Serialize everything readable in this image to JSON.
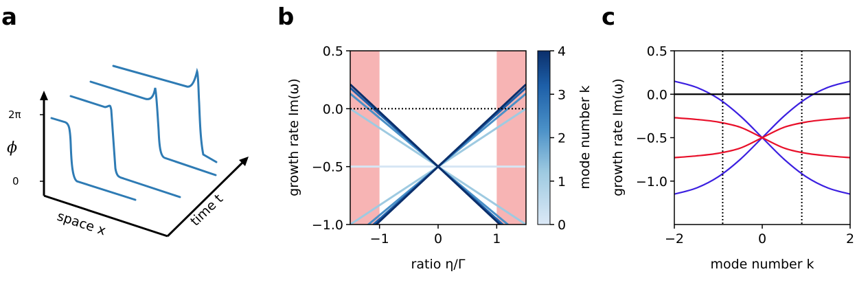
{
  "panels": {
    "a": {
      "label": "a",
      "phi_label": "ϕ",
      "tick_2pi": "2π",
      "tick_0": "0",
      "space_label": "space x",
      "time_label": "time t",
      "colors": {
        "curve": "#2e7bb4"
      }
    },
    "b": {
      "label": "b",
      "xlabel": "ratio η/Γ",
      "ylabel": "growth rate Im(ω)",
      "colorbar_label": "mode number k",
      "xticks": [
        "−1",
        "0",
        "1"
      ],
      "yticks": [
        "0.5",
        "0.0",
        "−0.5",
        "−1.0"
      ],
      "cbticks": [
        "4",
        "3",
        "2",
        "1",
        "0"
      ],
      "colors": {
        "shade": "#f7b4b4",
        "cb_low": "#dbe8f6",
        "cb_high": "#0b2f6b",
        "dotted": "#000000"
      }
    },
    "c": {
      "label": "c",
      "xlabel": "mode number k",
      "ylabel": "growth rate Im(ω)",
      "xticks": [
        "−2",
        "0",
        "2"
      ],
      "yticks": [
        "0.5",
        "0.0",
        "−0.5",
        "−1.0"
      ],
      "colors": {
        "blue": "#3b1fe0",
        "red": "#e8102a",
        "black": "#000000"
      }
    }
  },
  "chart_data": [
    {
      "type": "line",
      "panel": "b",
      "xlim": [
        -1.5,
        1.5
      ],
      "ylim": [
        -1.0,
        0.5
      ],
      "shaded_regions": [
        [
          -1.5,
          -1.0
        ],
        [
          1.0,
          1.5
        ]
      ],
      "hlines_dotted": [
        0.0
      ],
      "colorbar": {
        "label": "mode number k",
        "range": [
          0,
          4
        ]
      },
      "series": [
        {
          "k": 0,
          "lines": [
            [
              [
                -1.5,
                -0.5
              ],
              [
                1.5,
                -0.5
              ]
            ]
          ]
        },
        {
          "k": 1,
          "lines": [
            [
              [
                -1.5,
                0.0
              ],
              [
                1.5,
                -1.0
              ]
            ],
            [
              [
                -1.5,
                -1.0
              ],
              [
                1.5,
                0.0
              ]
            ]
          ]
        },
        {
          "k": 2,
          "lines": [
            [
              [
                -1.5,
                0.13
              ],
              [
                1.5,
                -1.13
              ]
            ],
            [
              [
                -1.5,
                -1.13
              ],
              [
                1.5,
                0.13
              ]
            ]
          ]
        },
        {
          "k": 3,
          "lines": [
            [
              [
                -1.5,
                0.18
              ],
              [
                1.5,
                -1.18
              ]
            ],
            [
              [
                -1.5,
                -1.18
              ],
              [
                1.5,
                0.18
              ]
            ]
          ]
        },
        {
          "k": 4,
          "lines": [
            [
              [
                -1.5,
                0.21
              ],
              [
                1.5,
                -1.21
              ]
            ],
            [
              [
                -1.5,
                -1.21
              ],
              [
                1.5,
                0.21
              ]
            ]
          ]
        }
      ]
    },
    {
      "type": "line",
      "panel": "c",
      "xlim": [
        -2,
        2
      ],
      "ylim": [
        -1.5,
        0.5
      ],
      "hlines": [
        0.0
      ],
      "vlines_dotted": [
        -0.9,
        0.9
      ],
      "series": [
        {
          "color": "blue",
          "x": [
            -2.0,
            -1.5,
            -1.0,
            -0.5,
            0.0,
            0.5,
            1.0,
            1.5,
            2.0
          ],
          "y": [
            0.15,
            0.08,
            -0.05,
            -0.25,
            -0.5,
            -0.75,
            -0.95,
            -1.08,
            -1.15
          ]
        },
        {
          "color": "blue",
          "x": [
            -2.0,
            -1.5,
            -1.0,
            -0.5,
            0.0,
            0.5,
            1.0,
            1.5,
            2.0
          ],
          "y": [
            -1.15,
            -1.08,
            -0.95,
            -0.75,
            -0.5,
            -0.25,
            -0.05,
            0.08,
            0.15
          ]
        },
        {
          "color": "red",
          "x": [
            -2.0,
            -1.5,
            -1.0,
            -0.5,
            0.0,
            0.5,
            1.0,
            1.5,
            2.0
          ],
          "y": [
            -0.27,
            -0.29,
            -0.32,
            -0.38,
            -0.5,
            -0.62,
            -0.68,
            -0.71,
            -0.73
          ]
        },
        {
          "color": "red",
          "x": [
            -2.0,
            -1.5,
            -1.0,
            -0.5,
            0.0,
            0.5,
            1.0,
            1.5,
            2.0
          ],
          "y": [
            -0.73,
            -0.71,
            -0.68,
            -0.62,
            -0.5,
            -0.38,
            -0.32,
            -0.29,
            -0.27
          ]
        }
      ]
    }
  ]
}
